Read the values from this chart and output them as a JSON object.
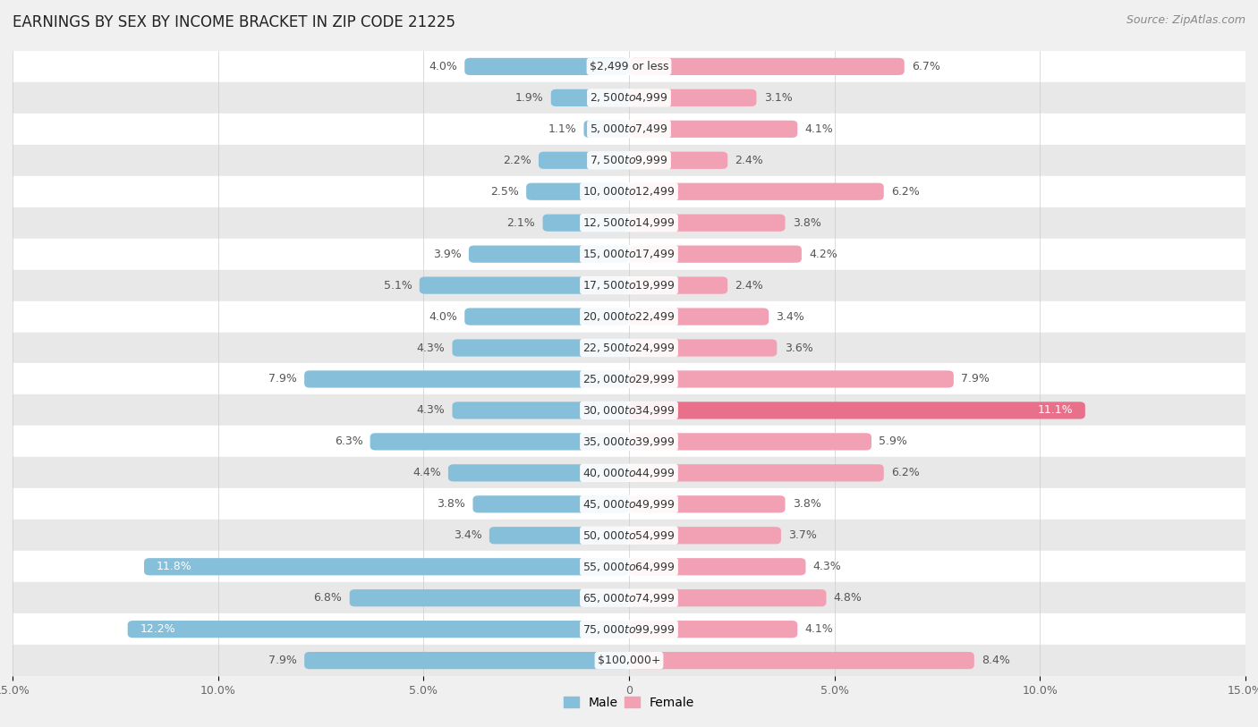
{
  "title": "EARNINGS BY SEX BY INCOME BRACKET IN ZIP CODE 21225",
  "source": "Source: ZipAtlas.com",
  "categories": [
    "$2,499 or less",
    "$2,500 to $4,999",
    "$5,000 to $7,499",
    "$7,500 to $9,999",
    "$10,000 to $12,499",
    "$12,500 to $14,999",
    "$15,000 to $17,499",
    "$17,500 to $19,999",
    "$20,000 to $22,499",
    "$22,500 to $24,999",
    "$25,000 to $29,999",
    "$30,000 to $34,999",
    "$35,000 to $39,999",
    "$40,000 to $44,999",
    "$45,000 to $49,999",
    "$50,000 to $54,999",
    "$55,000 to $64,999",
    "$65,000 to $74,999",
    "$75,000 to $99,999",
    "$100,000+"
  ],
  "male_values": [
    4.0,
    1.9,
    1.1,
    2.2,
    2.5,
    2.1,
    3.9,
    5.1,
    4.0,
    4.3,
    7.9,
    4.3,
    6.3,
    4.4,
    3.8,
    3.4,
    11.8,
    6.8,
    12.2,
    7.9
  ],
  "female_values": [
    6.7,
    3.1,
    4.1,
    2.4,
    6.2,
    3.8,
    4.2,
    2.4,
    3.4,
    3.6,
    7.9,
    11.1,
    5.9,
    6.2,
    3.8,
    3.7,
    4.3,
    4.8,
    4.1,
    8.4
  ],
  "male_color": "#85BFDA",
  "female_color": "#F2A0B4",
  "female_highlight_color": "#E8708A",
  "male_label_color_default": "#555555",
  "female_label_color_default": "#555555",
  "label_inside_color": "#ffffff",
  "inside_threshold": 8.5,
  "x_max": 15.0,
  "bg_color": "#f0f0f0",
  "row_white": "#ffffff",
  "row_gray": "#e8e8e8",
  "title_fontsize": 12,
  "source_fontsize": 9,
  "label_fontsize": 9,
  "cat_fontsize": 9,
  "tick_fontsize": 9,
  "legend_fontsize": 10
}
